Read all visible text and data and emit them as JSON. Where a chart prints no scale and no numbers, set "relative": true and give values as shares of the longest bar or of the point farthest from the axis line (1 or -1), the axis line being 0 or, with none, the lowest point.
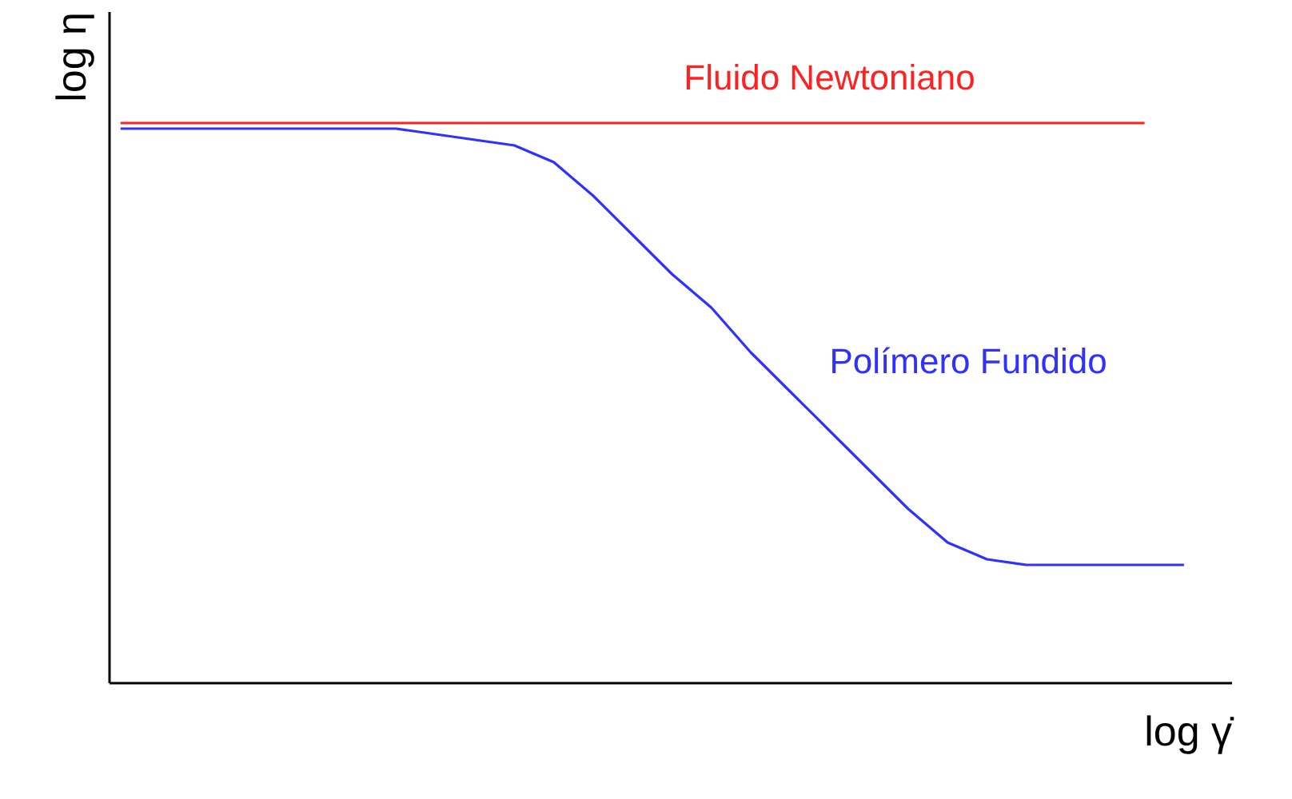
{
  "chart_data": {
    "type": "line",
    "relative": true,
    "xlabel": "log γ̇",
    "ylabel": "log η",
    "marker": "none",
    "line_style": "solid",
    "categories": [
      null,
      null,
      null,
      null,
      null,
      null,
      null,
      null,
      null,
      null,
      null,
      null,
      null,
      null,
      null,
      null,
      null,
      null,
      null,
      null,
      null,
      null,
      null,
      null,
      null,
      null,
      null,
      null
    ],
    "series": [
      {
        "name": "Fluido Newtoniano",
        "color": "#ff2020",
        "values": [
          1,
          1,
          1,
          1,
          1,
          1,
          1,
          1,
          1,
          1,
          1,
          1,
          1,
          1,
          1,
          1,
          1,
          1,
          1,
          1,
          1,
          1,
          1,
          1,
          1,
          1,
          1,
          null
        ]
      },
      {
        "name": "Polímero Fundido",
        "color": "#3030ff",
        "values": [
          0.99,
          0.99,
          0.99,
          0.99,
          0.99,
          0.99,
          0.99,
          0.99,
          0.98,
          0.97,
          0.96,
          0.93,
          0.87,
          0.8,
          0.73,
          0.67,
          0.59,
          0.52,
          0.45,
          0.38,
          0.31,
          0.25,
          0.22,
          0.21,
          0.21,
          0.21,
          0.21,
          0.21
        ]
      }
    ]
  }
}
